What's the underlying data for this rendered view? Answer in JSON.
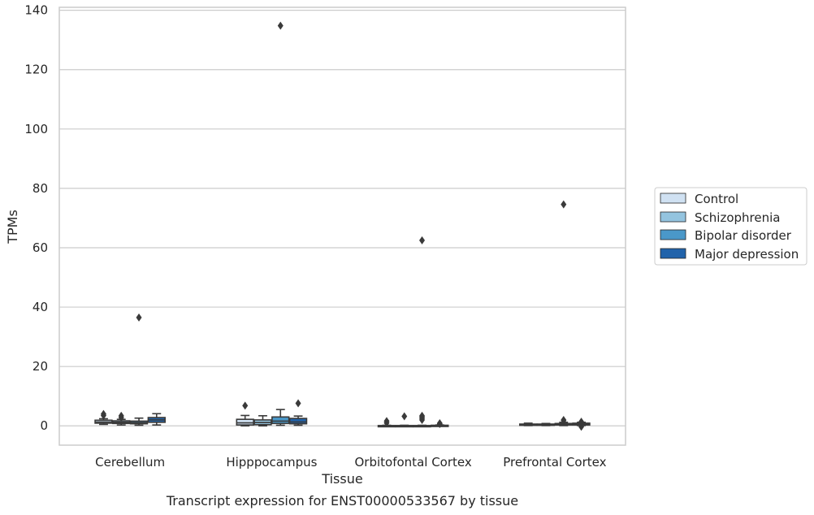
{
  "chart_data": {
    "type": "box",
    "title": "",
    "caption": "Transcript expression for ENST00000533567 by tissue",
    "xlabel": "Tissue",
    "ylabel": "TPMs",
    "ylim": [
      -6.5,
      141
    ],
    "yticks": [
      0,
      20,
      40,
      60,
      80,
      100,
      120,
      140
    ],
    "grid": "horizontal",
    "legend_position": "right",
    "categories": [
      "Cerebellum",
      "Hipppocampus",
      "Orbitofontal Cortex",
      "Prefrontal Cortex"
    ],
    "series": [
      {
        "name": "Control",
        "color": "#d0e1f2",
        "boxes": [
          {
            "whisker_low": 0.5,
            "q1": 0.9,
            "median": 1.3,
            "q3": 1.9,
            "whisker_high": 2.4,
            "outliers": [
              3.5,
              4.0
            ]
          },
          {
            "whisker_low": 0.0,
            "q1": 0.3,
            "median": 1.0,
            "q3": 2.2,
            "whisker_high": 3.5,
            "outliers": [
              6.8
            ]
          },
          {
            "whisker_low": 0.0,
            "q1": 0.0,
            "median": 0.05,
            "q3": 0.1,
            "whisker_high": 0.2,
            "outliers": [
              1.0,
              1.6
            ]
          },
          {
            "whisker_low": 0.1,
            "q1": 0.2,
            "median": 0.4,
            "q3": 0.6,
            "whisker_high": 0.9,
            "outliers": []
          }
        ]
      },
      {
        "name": "Schizophrenia",
        "color": "#94c4df",
        "boxes": [
          {
            "whisker_low": 0.3,
            "q1": 0.8,
            "median": 1.2,
            "q3": 1.7,
            "whisker_high": 2.2,
            "outliers": [
              2.8,
              3.4
            ]
          },
          {
            "whisker_low": 0.0,
            "q1": 0.4,
            "median": 1.1,
            "q3": 2.0,
            "whisker_high": 3.4,
            "outliers": []
          },
          {
            "whisker_low": 0.0,
            "q1": 0.0,
            "median": 0.05,
            "q3": 0.1,
            "whisker_high": 0.2,
            "outliers": [
              3.2
            ]
          },
          {
            "whisker_low": 0.1,
            "q1": 0.2,
            "median": 0.4,
            "q3": 0.6,
            "whisker_high": 0.8,
            "outliers": []
          }
        ]
      },
      {
        "name": "Bipolar disorder",
        "color": "#4a98c9",
        "boxes": [
          {
            "whisker_low": 0.2,
            "q1": 0.7,
            "median": 1.1,
            "q3": 1.6,
            "whisker_high": 2.6,
            "outliers": [
              36.5
            ]
          },
          {
            "whisker_low": 0.2,
            "q1": 0.8,
            "median": 1.6,
            "q3": 3.0,
            "whisker_high": 5.5,
            "outliers": [
              134.8
            ]
          },
          {
            "whisker_low": 0.0,
            "q1": 0.0,
            "median": 0.05,
            "q3": 0.1,
            "whisker_high": 0.2,
            "outliers": [
              2.0,
              2.5,
              3.0,
              3.4,
              62.5
            ]
          },
          {
            "whisker_low": 0.1,
            "q1": 0.3,
            "median": 0.5,
            "q3": 0.8,
            "whisker_high": 1.2,
            "outliers": [
              1.8,
              2.0,
              74.6
            ]
          }
        ]
      },
      {
        "name": "Major depression",
        "color": "#2163aa",
        "boxes": [
          {
            "whisker_low": 0.3,
            "q1": 1.2,
            "median": 2.0,
            "q3": 2.8,
            "whisker_high": 4.1,
            "outliers": []
          },
          {
            "whisker_low": 0.2,
            "q1": 0.7,
            "median": 1.3,
            "q3": 2.5,
            "whisker_high": 3.3,
            "outliers": [
              7.6
            ]
          },
          {
            "whisker_low": 0.0,
            "q1": 0.0,
            "median": 0.1,
            "q3": 0.2,
            "whisker_high": 0.3,
            "outliers": [
              0.6,
              0.9
            ]
          },
          {
            "whisker_low": 0.1,
            "q1": 0.3,
            "median": 0.6,
            "q3": 0.9,
            "whisker_high": 1.2,
            "outliers": [
              -0.3,
              0.2,
              1.4
            ]
          }
        ]
      }
    ]
  }
}
